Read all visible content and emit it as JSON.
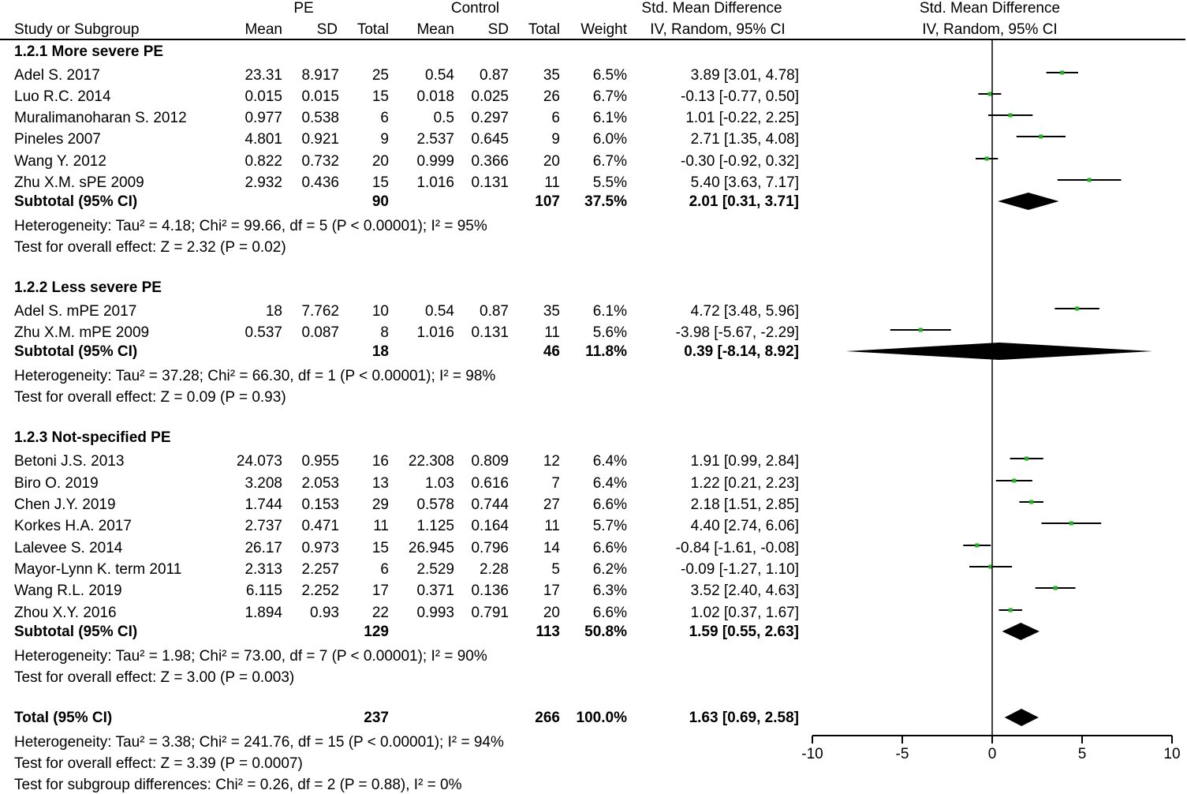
{
  "headers": {
    "group1": "PE",
    "group2": "Control",
    "smd_top": "Std. Mean Difference",
    "smd_sub": "IV, Random, 95% CI",
    "plot_top": "Std. Mean Difference",
    "plot_sub": "IV, Random, 95% CI",
    "study": "Study or Subgroup",
    "mean": "Mean",
    "sd": "SD",
    "total": "Total",
    "weight": "Weight"
  },
  "chart_data": {
    "type": "forest",
    "title": "Std. Mean Difference IV, Random, 95% CI",
    "xlim": [
      -10,
      10
    ],
    "xticks": [
      -10,
      -5,
      0,
      5,
      10
    ],
    "xtick_labels": [
      "-10",
      "-5",
      "0",
      "5",
      "10"
    ],
    "subgroups": [
      {
        "title": "1.2.1 More severe PE",
        "studies": [
          {
            "name": "Adel S. 2017",
            "pe_mean": "23.31",
            "pe_sd": "8.917",
            "pe_total": "25",
            "c_mean": "0.54",
            "c_sd": "0.87",
            "c_total": "35",
            "weight": "6.5%",
            "ci_text": "3.89 [3.01, 4.78]",
            "est": 3.89,
            "lo": 3.01,
            "hi": 4.78
          },
          {
            "name": "Luo R.C. 2014",
            "pe_mean": "0.015",
            "pe_sd": "0.015",
            "pe_total": "15",
            "c_mean": "0.018",
            "c_sd": "0.025",
            "c_total": "26",
            "weight": "6.7%",
            "ci_text": "-0.13 [-0.77, 0.50]",
            "est": -0.13,
            "lo": -0.77,
            "hi": 0.5
          },
          {
            "name": "Muralimanoharan S. 2012",
            "pe_mean": "0.977",
            "pe_sd": "0.538",
            "pe_total": "6",
            "c_mean": "0.5",
            "c_sd": "0.297",
            "c_total": "6",
            "weight": "6.1%",
            "ci_text": "1.01 [-0.22, 2.25]",
            "est": 1.01,
            "lo": -0.22,
            "hi": 2.25
          },
          {
            "name": "Pineles 2007",
            "pe_mean": "4.801",
            "pe_sd": "0.921",
            "pe_total": "9",
            "c_mean": "2.537",
            "c_sd": "0.645",
            "c_total": "9",
            "weight": "6.0%",
            "ci_text": "2.71 [1.35, 4.08]",
            "est": 2.71,
            "lo": 1.35,
            "hi": 4.08
          },
          {
            "name": "Wang Y. 2012",
            "pe_mean": "0.822",
            "pe_sd": "0.732",
            "pe_total": "20",
            "c_mean": "0.999",
            "c_sd": "0.366",
            "c_total": "20",
            "weight": "6.7%",
            "ci_text": "-0.30 [-0.92, 0.32]",
            "est": -0.3,
            "lo": -0.92,
            "hi": 0.32
          },
          {
            "name": "Zhu X.M. sPE 2009",
            "pe_mean": "2.932",
            "pe_sd": "0.436",
            "pe_total": "15",
            "c_mean": "1.016",
            "c_sd": "0.131",
            "c_total": "11",
            "weight": "5.5%",
            "ci_text": "5.40 [3.63, 7.17]",
            "est": 5.4,
            "lo": 3.63,
            "hi": 7.17
          }
        ],
        "subtotal": {
          "label": "Subtotal (95% CI)",
          "pe_total": "90",
          "c_total": "107",
          "weight": "37.5%",
          "ci_text": "2.01 [0.31, 3.71]",
          "est": 2.01,
          "lo": 0.31,
          "hi": 3.71
        },
        "heterogeneity": "Heterogeneity: Tau² = 4.18; Chi² = 99.66, df = 5 (P < 0.00001); I² = 95%",
        "overall": "Test for overall effect: Z = 2.32 (P = 0.02)"
      },
      {
        "title": "1.2.2 Less severe PE",
        "studies": [
          {
            "name": "Adel S. mPE 2017",
            "pe_mean": "18",
            "pe_sd": "7.762",
            "pe_total": "10",
            "c_mean": "0.54",
            "c_sd": "0.87",
            "c_total": "35",
            "weight": "6.1%",
            "ci_text": "4.72 [3.48, 5.96]",
            "est": 4.72,
            "lo": 3.48,
            "hi": 5.96
          },
          {
            "name": "Zhu X.M. mPE 2009",
            "pe_mean": "0.537",
            "pe_sd": "0.087",
            "pe_total": "8",
            "c_mean": "1.016",
            "c_sd": "0.131",
            "c_total": "11",
            "weight": "5.6%",
            "ci_text": "-3.98 [-5.67, -2.29]",
            "est": -3.98,
            "lo": -5.67,
            "hi": -2.29
          }
        ],
        "subtotal": {
          "label": "Subtotal (95% CI)",
          "pe_total": "18",
          "c_total": "46",
          "weight": "11.8%",
          "ci_text": "0.39 [-8.14, 8.92]",
          "est": 0.39,
          "lo": -8.14,
          "hi": 8.92
        },
        "heterogeneity": "Heterogeneity: Tau² = 37.28; Chi² = 66.30, df = 1 (P < 0.00001); I² = 98%",
        "overall": "Test for overall effect: Z = 0.09 (P = 0.93)"
      },
      {
        "title": "1.2.3 Not-specified PE",
        "studies": [
          {
            "name": "Betoni J.S. 2013",
            "pe_mean": "24.073",
            "pe_sd": "0.955",
            "pe_total": "16",
            "c_mean": "22.308",
            "c_sd": "0.809",
            "c_total": "12",
            "weight": "6.4%",
            "ci_text": "1.91 [0.99, 2.84]",
            "est": 1.91,
            "lo": 0.99,
            "hi": 2.84
          },
          {
            "name": "Biro O. 2019",
            "pe_mean": "3.208",
            "pe_sd": "2.053",
            "pe_total": "13",
            "c_mean": "1.03",
            "c_sd": "0.616",
            "c_total": "7",
            "weight": "6.4%",
            "ci_text": "1.22 [0.21, 2.23]",
            "est": 1.22,
            "lo": 0.21,
            "hi": 2.23
          },
          {
            "name": "Chen J.Y. 2019",
            "pe_mean": "1.744",
            "pe_sd": "0.153",
            "pe_total": "29",
            "c_mean": "0.578",
            "c_sd": "0.744",
            "c_total": "27",
            "weight": "6.6%",
            "ci_text": "2.18 [1.51, 2.85]",
            "est": 2.18,
            "lo": 1.51,
            "hi": 2.85
          },
          {
            "name": "Korkes H.A. 2017",
            "pe_mean": "2.737",
            "pe_sd": "0.471",
            "pe_total": "11",
            "c_mean": "1.125",
            "c_sd": "0.164",
            "c_total": "11",
            "weight": "5.7%",
            "ci_text": "4.40 [2.74, 6.06]",
            "est": 4.4,
            "lo": 2.74,
            "hi": 6.06
          },
          {
            "name": "Lalevee S. 2014",
            "pe_mean": "26.17",
            "pe_sd": "0.973",
            "pe_total": "15",
            "c_mean": "26.945",
            "c_sd": "0.796",
            "c_total": "14",
            "weight": "6.6%",
            "ci_text": "-0.84 [-1.61, -0.08]",
            "est": -0.84,
            "lo": -1.61,
            "hi": -0.08
          },
          {
            "name": "Mayor-Lynn K. term 2011",
            "pe_mean": "2.313",
            "pe_sd": "2.257",
            "pe_total": "6",
            "c_mean": "2.529",
            "c_sd": "2.28",
            "c_total": "5",
            "weight": "6.2%",
            "ci_text": "-0.09 [-1.27, 1.10]",
            "est": -0.09,
            "lo": -1.27,
            "hi": 1.1
          },
          {
            "name": "Wang R.L. 2019",
            "pe_mean": "6.115",
            "pe_sd": "2.252",
            "pe_total": "17",
            "c_mean": "0.371",
            "c_sd": "0.136",
            "c_total": "17",
            "weight": "6.3%",
            "ci_text": "3.52 [2.40, 4.63]",
            "est": 3.52,
            "lo": 2.4,
            "hi": 4.63
          },
          {
            "name": "Zhou X.Y. 2016",
            "pe_mean": "1.894",
            "pe_sd": "0.93",
            "pe_total": "22",
            "c_mean": "0.993",
            "c_sd": "0.791",
            "c_total": "20",
            "weight": "6.6%",
            "ci_text": "1.02 [0.37, 1.67]",
            "est": 1.02,
            "lo": 0.37,
            "hi": 1.67
          }
        ],
        "subtotal": {
          "label": "Subtotal (95% CI)",
          "pe_total": "129",
          "c_total": "113",
          "weight": "50.8%",
          "ci_text": "1.59 [0.55, 2.63]",
          "est": 1.59,
          "lo": 0.55,
          "hi": 2.63
        },
        "heterogeneity": "Heterogeneity: Tau² = 1.98; Chi² = 73.00, df = 7 (P < 0.00001); I² = 90%",
        "overall": "Test for overall effect: Z = 3.00 (P = 0.003)"
      }
    ],
    "total": {
      "label": "Total (95% CI)",
      "pe_total": "237",
      "c_total": "266",
      "weight": "100.0%",
      "ci_text": "1.63 [0.69, 2.58]",
      "est": 1.63,
      "lo": 0.69,
      "hi": 2.58
    },
    "total_heterogeneity": "Heterogeneity: Tau² = 3.38; Chi² = 241.76, df = 15 (P < 0.00001); I² = 94%",
    "total_overall": "Test for overall effect: Z = 3.39 (P = 0.0007)",
    "subgroup_differences": "Test for subgroup differences: Chi² = 0.26, df = 2 (P = 0.88), I² = 0%"
  },
  "colors": {
    "point": "#22b222",
    "diamond": "#000000",
    "line": "#000000"
  }
}
